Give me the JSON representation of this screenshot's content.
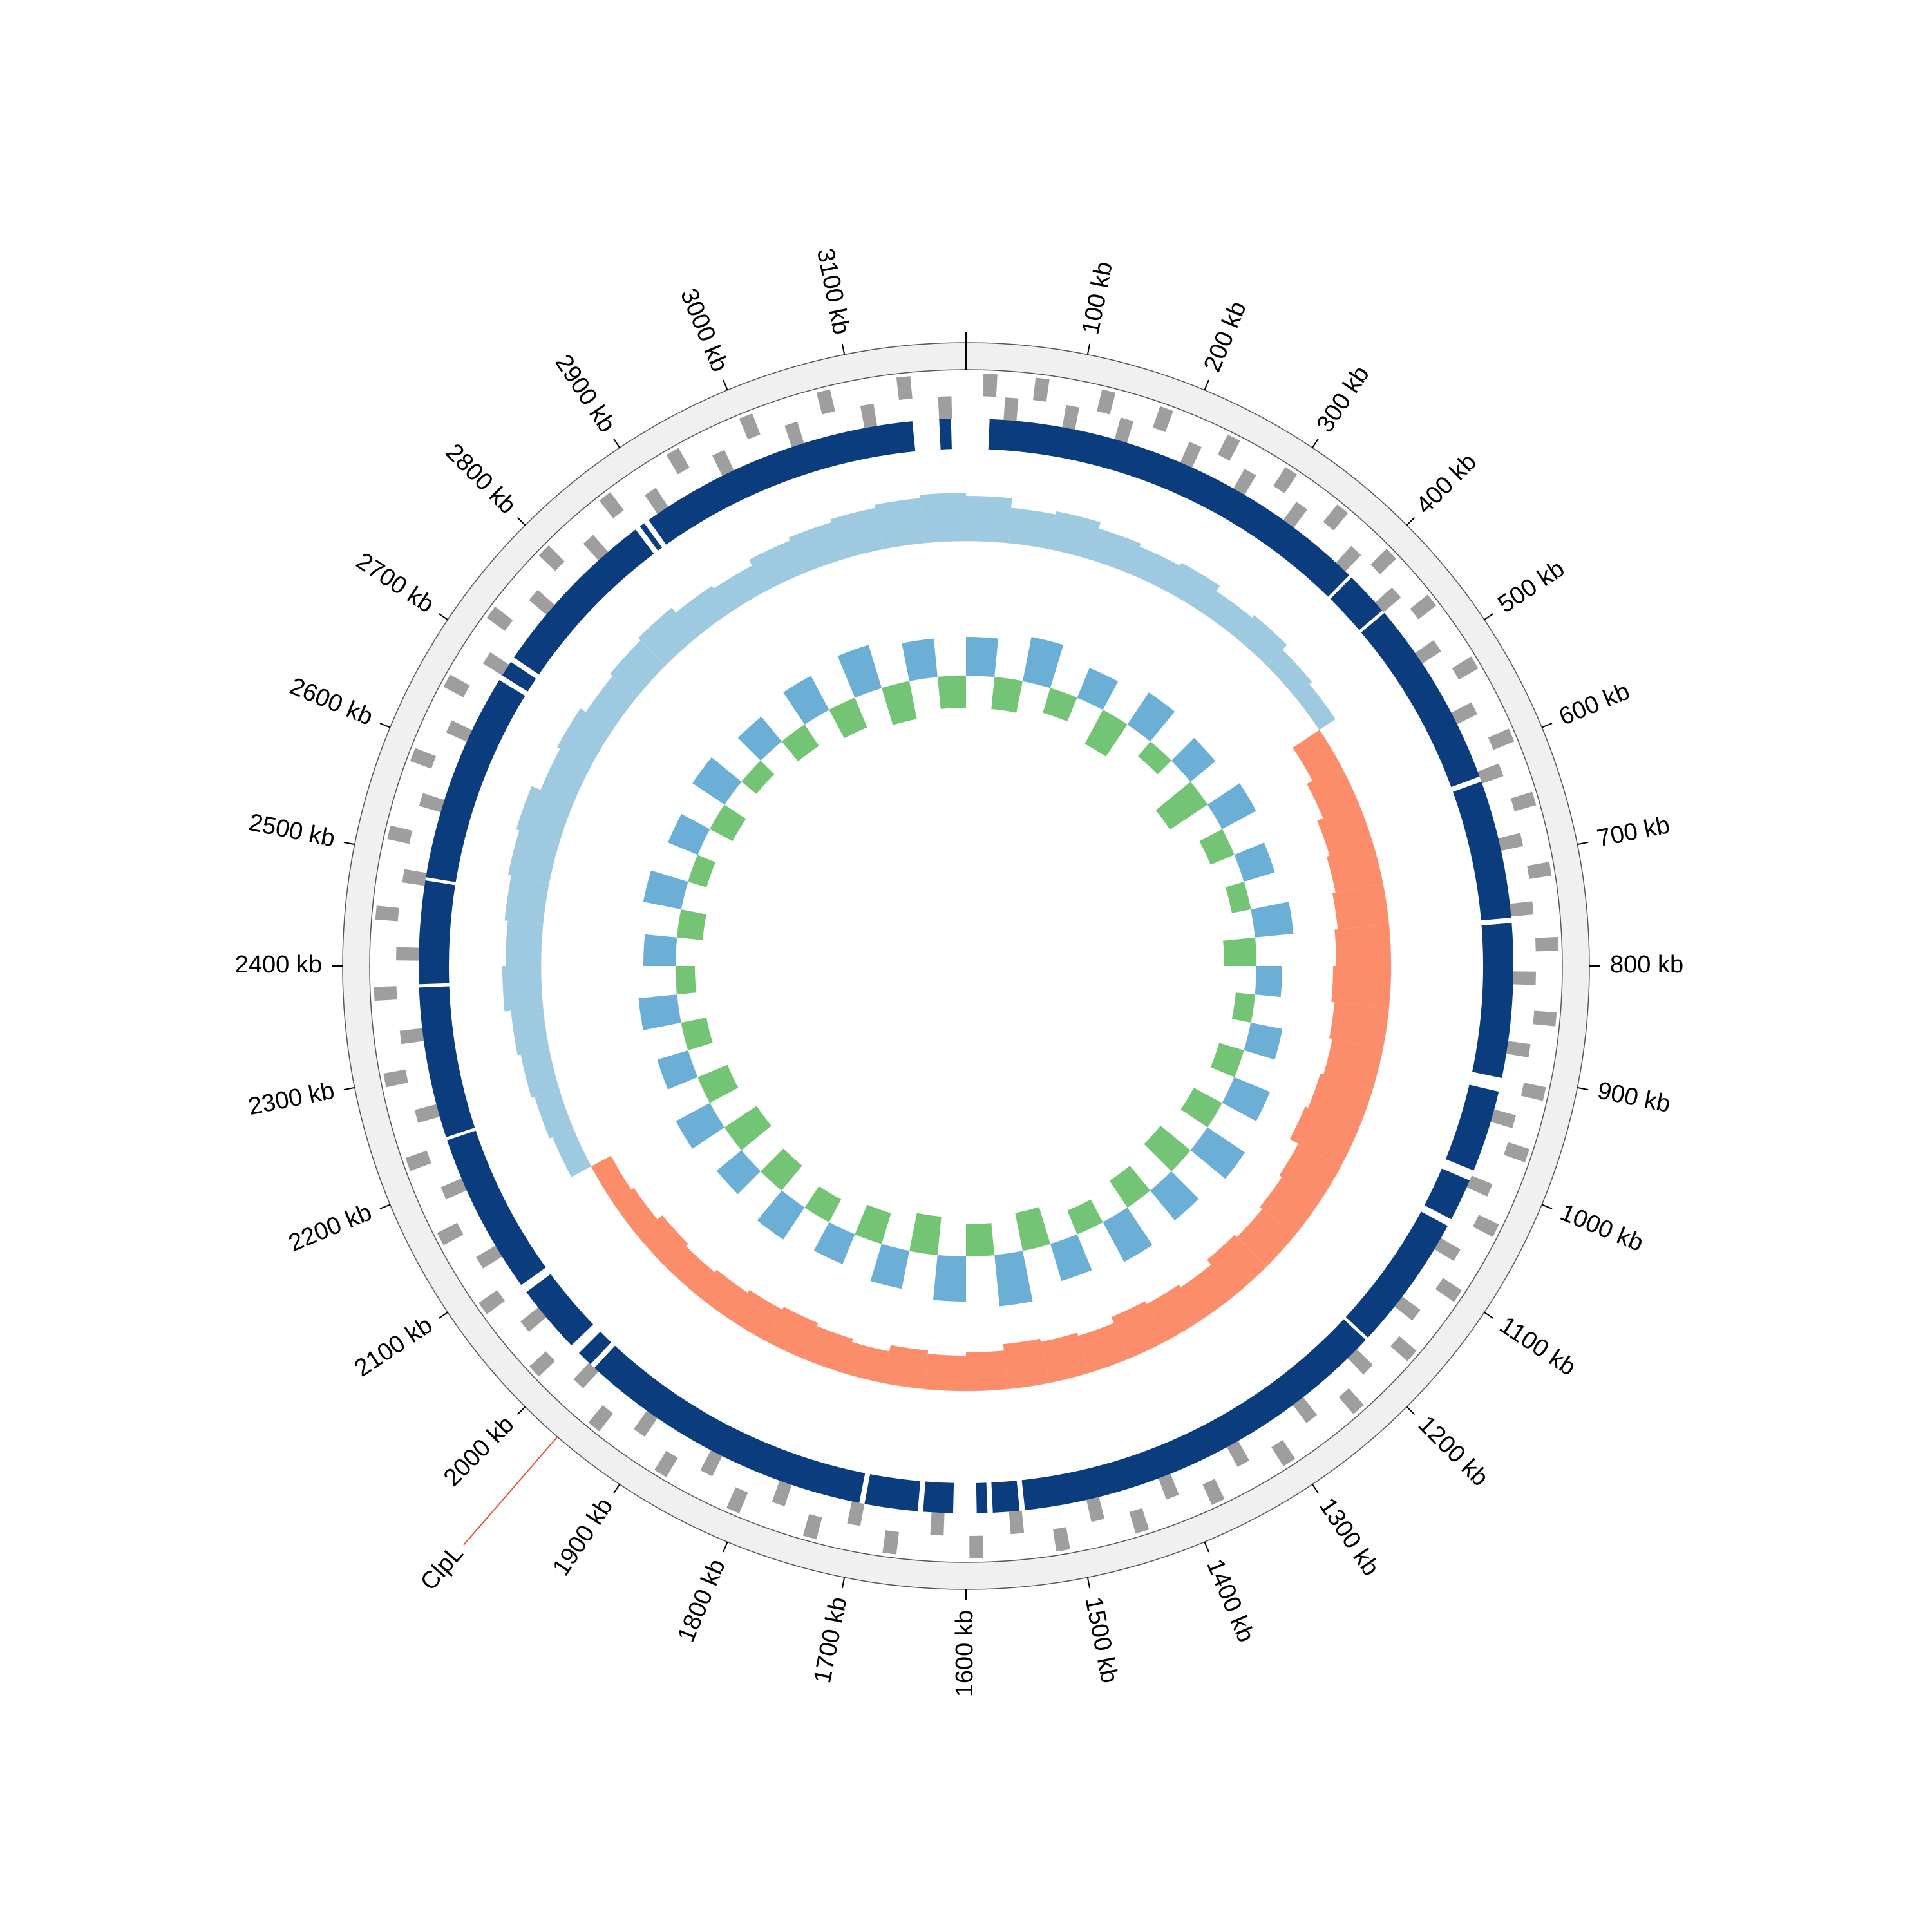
{
  "chart_data": {
    "type": "circular-genome",
    "xlim": [
      0,
      3200
    ],
    "xticks": [
      {
        "value": 100,
        "label": "100 kb"
      },
      {
        "value": 200,
        "label": "200 kb"
      },
      {
        "value": 300,
        "label": "300 kb"
      },
      {
        "value": 400,
        "label": "400 kb"
      },
      {
        "value": 500,
        "label": "500 kb"
      },
      {
        "value": 600,
        "label": "600 kb"
      },
      {
        "value": 700,
        "label": "700 kb"
      },
      {
        "value": 800,
        "label": "800 kb"
      },
      {
        "value": 900,
        "label": "900 kb"
      },
      {
        "value": 1000,
        "label": "1000 kb"
      },
      {
        "value": 1100,
        "label": "1100 kb"
      },
      {
        "value": 1200,
        "label": "1200 kb"
      },
      {
        "value": 1300,
        "label": "1300 kb"
      },
      {
        "value": 1400,
        "label": "1400 kb"
      },
      {
        "value": 1500,
        "label": "1500 kb"
      },
      {
        "value": 1600,
        "label": "1600 kb"
      },
      {
        "value": 1700,
        "label": "1700 kb"
      },
      {
        "value": 1800,
        "label": "1800 kb"
      },
      {
        "value": 1900,
        "label": "1900 kb"
      },
      {
        "value": 2000,
        "label": "2000 kb"
      },
      {
        "value": 2100,
        "label": "2100 kb"
      },
      {
        "value": 2200,
        "label": "2200 kb"
      },
      {
        "value": 2300,
        "label": "2300 kb"
      },
      {
        "value": 2400,
        "label": "2400 kb"
      },
      {
        "value": 2500,
        "label": "2500 kb"
      },
      {
        "value": 2600,
        "label": "2600 kb"
      },
      {
        "value": 2700,
        "label": "2700 kb"
      },
      {
        "value": 2800,
        "label": "2800 kb"
      },
      {
        "value": 2900,
        "label": "2900 kb"
      },
      {
        "value": 3000,
        "label": "3000 kb"
      },
      {
        "value": 3100,
        "label": "3100 kb"
      }
    ],
    "genes": {
      "color": "#9e9e9e",
      "forward": [
        15,
        60,
        118,
        170,
        233,
        290,
        345,
        402,
        455,
        520,
        590,
        648,
        710,
        775,
        840,
        905,
        960,
        1030,
        1095,
        1160,
        1225,
        1300,
        1370,
        1440,
        1510,
        1585,
        1660,
        1730,
        1800,
        1870,
        1940,
        2010,
        2080,
        2150,
        2220,
        2295,
        2370,
        2440,
        2510,
        2580,
        2650,
        2720,
        2790,
        2860,
        2930,
        3000,
        3070,
        3140
      ],
      "reverse": [
        35,
        90,
        140,
        205,
        260,
        315,
        378,
        430,
        490,
        555,
        615,
        680,
        742,
        805,
        870,
        935,
        1000,
        1065,
        1130,
        1195,
        1262,
        1335,
        1405,
        1475,
        1548,
        1620,
        1695,
        1765,
        1835,
        1905,
        1975,
        2045,
        2115,
        2185,
        2258,
        2330,
        2405,
        2475,
        2545,
        2615,
        2685,
        2755,
        2825,
        2895,
        2965,
        3035,
        3105,
        3175
      ]
    },
    "blocks": {
      "color": "#0b3d7e",
      "ranges": [
        [
          22,
          395
        ],
        [
          398,
          440
        ],
        [
          443,
          620
        ],
        [
          625,
          755
        ],
        [
          760,
          905
        ],
        [
          918,
          995
        ],
        [
          1005,
          1045
        ],
        [
          1052,
          1180
        ],
        [
          1183,
          1545
        ],
        [
          1550,
          1575
        ],
        [
          1580,
          1590
        ],
        [
          1612,
          1640
        ],
        [
          1645,
          1695
        ],
        [
          1700,
          1980
        ],
        [
          1985,
          2000
        ],
        [
          2010,
          2075
        ],
        [
          2083,
          2235
        ],
        [
          2238,
          2380
        ],
        [
          2383,
          2480
        ],
        [
          2483,
          2680
        ],
        [
          2685,
          2700
        ],
        [
          2705,
          2870
        ],
        [
          2875,
          2880
        ],
        [
          2885,
          3150
        ],
        [
          3175,
          3186
        ]
      ]
    },
    "bins": [
      0,
      50,
      100,
      150,
      200,
      250,
      300,
      350,
      400,
      450,
      500,
      550,
      600,
      650,
      700,
      750,
      800,
      850,
      900,
      950,
      1000,
      1050,
      1100,
      1150,
      1200,
      1250,
      1300,
      1350,
      1400,
      1450,
      1500,
      1550,
      1600,
      1650,
      1700,
      1750,
      1800,
      1850,
      1900,
      1950,
      2000,
      2050,
      2100,
      2150,
      2200,
      2250,
      2300,
      2350,
      2400,
      2450,
      2500,
      2550,
      2600,
      2650,
      2700,
      2750,
      2800,
      2850,
      2900,
      2950,
      3000,
      3050,
      3100,
      3150,
      3200
    ],
    "tracks": [
      {
        "pos_color": "#9ecae1",
        "neg_color": "#fc8d6a",
        "values": [
          0.7,
          0.55,
          0.6,
          0.5,
          0.45,
          0.5,
          0.4,
          0.45,
          0.35,
          0.3,
          -0.5,
          -0.6,
          -0.7,
          -0.75,
          -0.8,
          -0.85,
          -0.9,
          -0.85,
          -0.8,
          -0.85,
          -0.9,
          -0.75,
          -0.7,
          -0.65,
          -0.7,
          -0.6,
          -0.65,
          -0.7,
          -0.6,
          -0.65,
          -0.7,
          -0.6,
          -0.55,
          -0.6,
          -0.5,
          -0.55,
          -0.6,
          -0.55,
          -0.5,
          -0.45,
          -0.5,
          -0.4,
          -0.35,
          0.35,
          0.4,
          0.45,
          0.5,
          0.6,
          0.55,
          0.6,
          0.65,
          0.7,
          0.55,
          0.6,
          0.5,
          0.55,
          0.6,
          0.5,
          0.45,
          0.55,
          0.6,
          0.65,
          0.7,
          0.75
        ]
      },
      {
        "pos_color": "#6baed6",
        "neg_color": "#74c476",
        "values": [
          0.6,
          -0.5,
          0.7,
          -0.4,
          0.5,
          -0.6,
          0.6,
          -0.3,
          0.5,
          -0.7,
          0.6,
          -0.4,
          0.5,
          -0.3,
          0.6,
          -0.5,
          0.4,
          -0.3,
          0.5,
          -0.4,
          0.6,
          -0.5,
          0.7,
          -0.6,
          0.6,
          -0.5,
          0.7,
          -0.4,
          0.6,
          -0.6,
          0.8,
          -0.5,
          0.7,
          -0.6,
          0.6,
          -0.5,
          0.5,
          -0.4,
          0.6,
          -0.5,
          0.5,
          -0.6,
          0.6,
          -0.5,
          0.5,
          -0.4,
          0.6,
          -0.3,
          0.5,
          -0.4,
          0.6,
          -0.3,
          0.5,
          -0.4,
          0.6,
          -0.3,
          0.5,
          -0.4,
          0.6,
          -0.5,
          0.7,
          -0.6,
          0.6,
          -0.5
        ]
      }
    ],
    "annotations": [
      {
        "label": "ClpL",
        "position": 1964,
        "color": "#1f77b4",
        "line_color": "#e8553f"
      }
    ]
  }
}
